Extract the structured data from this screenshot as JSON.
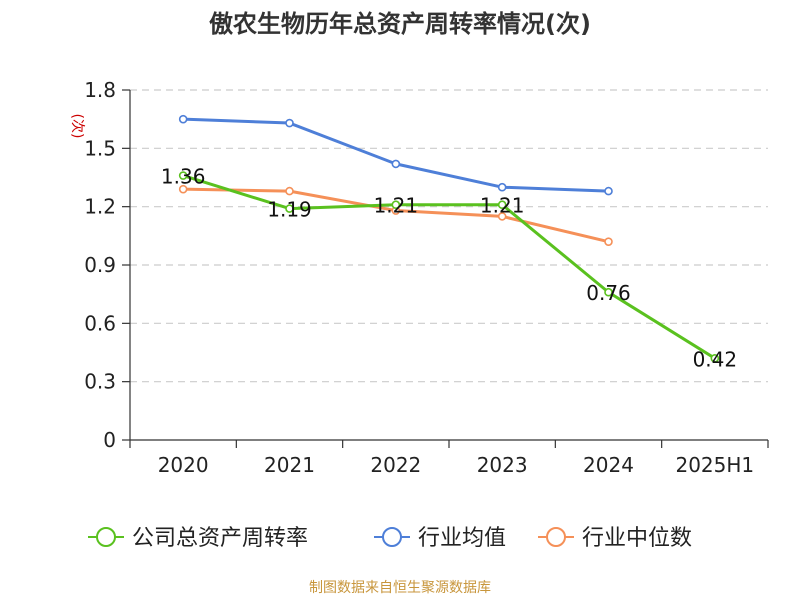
{
  "chart_data": {
    "type": "line",
    "title": "傲农生物历年总资产周转率情况(次)",
    "y_unit": "(次)",
    "categories": [
      "2020",
      "2021",
      "2022",
      "2023",
      "2024",
      "2025H1"
    ],
    "ylim": [
      0,
      1.8
    ],
    "yticks": [
      "0",
      "0.3",
      "0.6",
      "0.9",
      "1.2",
      "1.5",
      "1.8"
    ],
    "grid": true,
    "legend_position": "bottom",
    "series": [
      {
        "name": "公司总资产周转率",
        "color": "#5ac11f",
        "values": [
          1.36,
          1.19,
          1.21,
          1.21,
          0.76,
          0.42
        ],
        "labels": [
          "1.36",
          "1.19",
          "1.21",
          "1.21",
          "0.76",
          "0.42"
        ]
      },
      {
        "name": "行业均值",
        "color": "#4e7fd8",
        "values": [
          1.65,
          1.63,
          1.42,
          1.3,
          1.28,
          null
        ]
      },
      {
        "name": "行业中位数",
        "color": "#f59058",
        "values": [
          1.29,
          1.28,
          1.18,
          1.15,
          1.02,
          null
        ]
      }
    ]
  },
  "source_text": "制图数据来自恒生聚源数据库",
  "colors": {
    "axis": "#333333",
    "grid": "#cccccc",
    "unit": "#cc0000",
    "source": "#c8963c"
  }
}
